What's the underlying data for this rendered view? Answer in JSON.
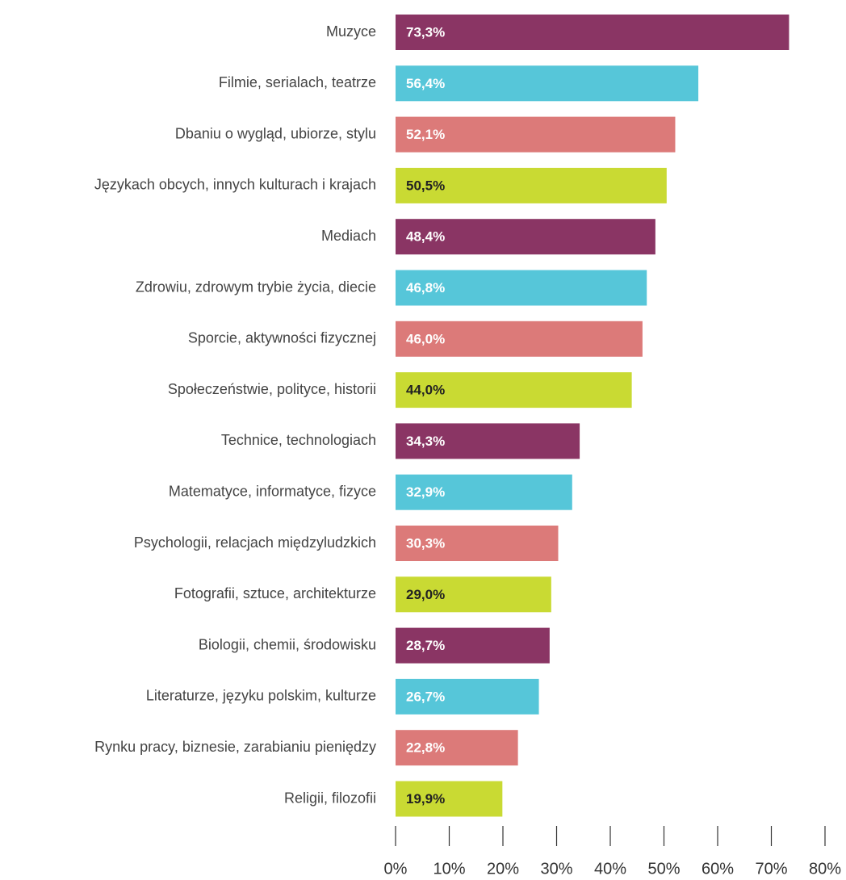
{
  "chart_data": {
    "type": "barh",
    "categories": [
      "Muzyce",
      "Filmie, serialach, teatrze",
      "Dbaniu o wygląd, ubiorze, stylu",
      "Językach obcych, innych kulturach i krajach",
      "Mediach",
      "Zdrowiu, zdrowym trybie życia, diecie",
      "Sporcie, aktywności fizycznej",
      "Społeczeństwie, polityce, historii",
      "Technice, technologiach",
      "Matematyce, informatyce, fizyce",
      "Psychologii, relacjach międzyludzkich",
      "Fotografii, sztuce, architekturze",
      "Biologii, chemii, środowisku",
      "Literaturze, języku polskim, kulturze",
      "Rynku pracy, biznesie, zarabianiu pieniędzy",
      "Religii, filozofii"
    ],
    "values": [
      73.3,
      56.4,
      52.1,
      50.5,
      48.4,
      46.8,
      46.0,
      44.0,
      34.3,
      32.9,
      30.3,
      29.0,
      28.7,
      26.7,
      22.8,
      19.9
    ],
    "value_labels": [
      "73,3%",
      "56,4%",
      "52,1%",
      "50,5%",
      "48,4%",
      "46,8%",
      "46,0%",
      "44,0%",
      "34,3%",
      "32,9%",
      "30,3%",
      "29,0%",
      "28,7%",
      "26,7%",
      "22,8%",
      "19,9%"
    ],
    "colors": [
      "#8a3564",
      "#56c6d9",
      "#dc7a79",
      "#c9da33",
      "#8a3564",
      "#56c6d9",
      "#dc7a79",
      "#c9da33",
      "#8a3564",
      "#56c6d9",
      "#dc7a79",
      "#c9da33",
      "#8a3564",
      "#56c6d9",
      "#dc7a79",
      "#c9da33"
    ],
    "xlim": [
      0,
      80
    ],
    "xticks": [
      {
        "value": 0,
        "label": "0%"
      },
      {
        "value": 10,
        "label": "10%"
      },
      {
        "value": 20,
        "label": "20%"
      },
      {
        "value": 30,
        "label": "30%"
      },
      {
        "value": 40,
        "label": "40%"
      },
      {
        "value": 50,
        "label": "50%"
      },
      {
        "value": 60,
        "label": "60%"
      },
      {
        "value": 70,
        "label": "70%"
      },
      {
        "value": 80,
        "label": "80%"
      }
    ]
  }
}
